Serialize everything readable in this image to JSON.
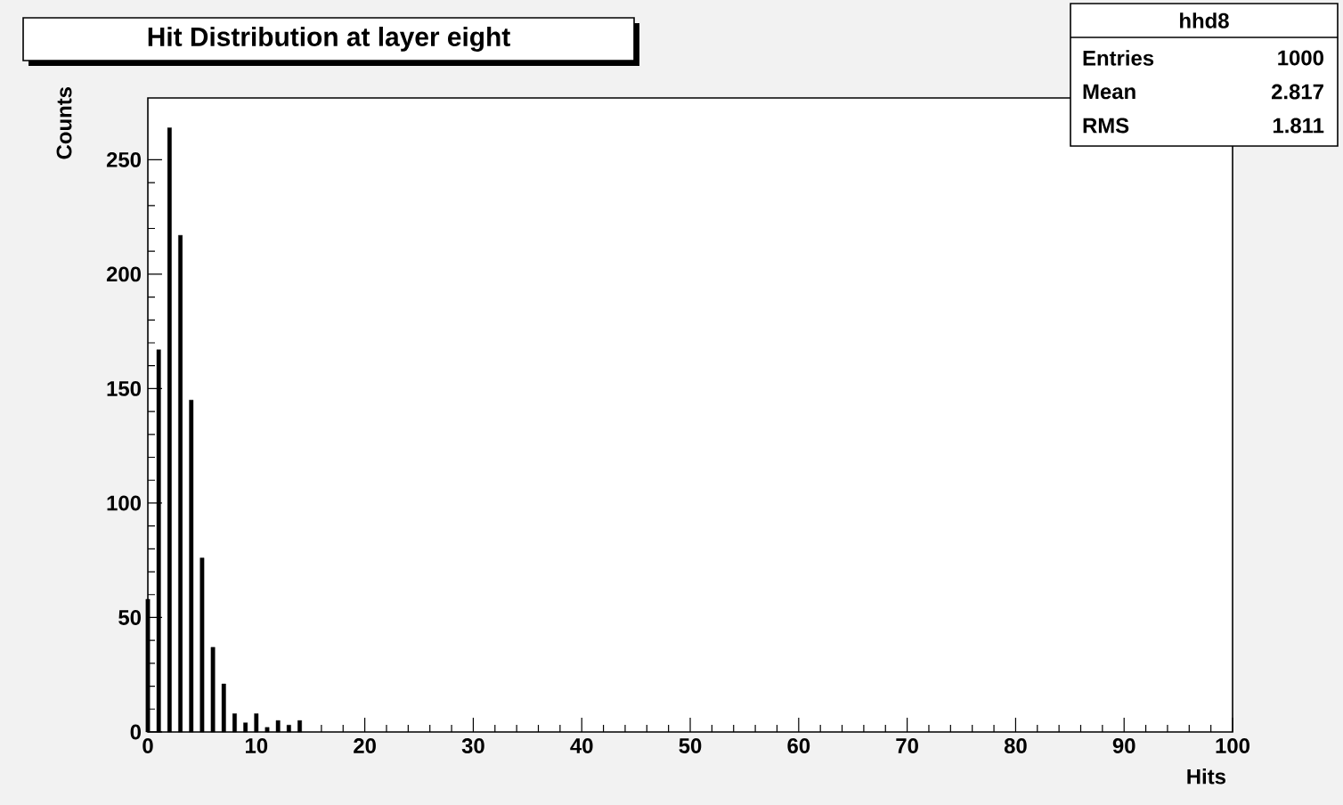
{
  "chart_data": {
    "type": "bar",
    "title": "Hit Distribution at layer eight",
    "xlabel": "Hits",
    "ylabel": "Counts",
    "x": [
      0,
      1,
      2,
      3,
      4,
      5,
      6,
      7,
      8,
      9,
      10,
      11,
      12,
      13,
      14
    ],
    "values": [
      58,
      167,
      264,
      217,
      145,
      76,
      37,
      21,
      8,
      4,
      8,
      2,
      5,
      3,
      5
    ],
    "color": "#000000",
    "xlim": [
      0,
      100
    ],
    "xticks": [
      0,
      10,
      20,
      30,
      40,
      50,
      60,
      70,
      80,
      90,
      100
    ],
    "ylim": [
      0,
      277
    ],
    "yticks": [
      0,
      50,
      100,
      150,
      200,
      250
    ],
    "grid": false,
    "annotations": [
      "hhd8",
      "Entries",
      "1000",
      "Mean",
      "2.817",
      "RMS",
      "1.811"
    ]
  }
}
